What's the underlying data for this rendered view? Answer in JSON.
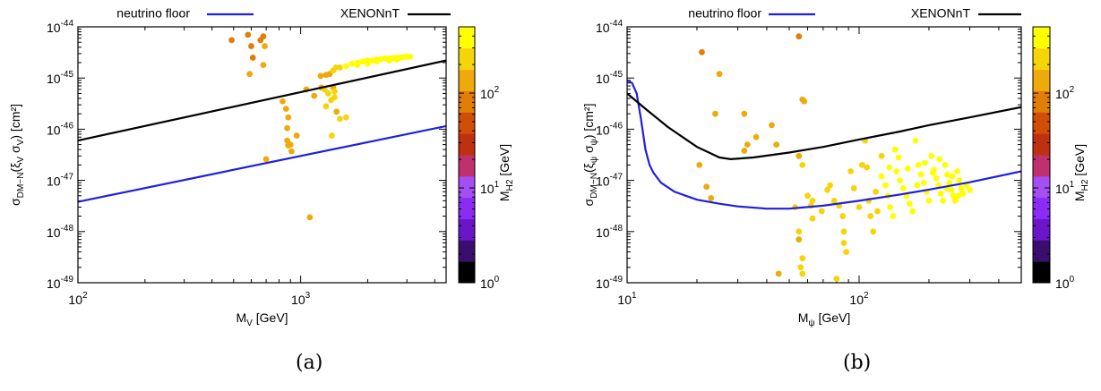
{
  "figure": {
    "caption_a": "(a)",
    "caption_b": "(b)"
  },
  "chart_data": [
    {
      "type": "scatter",
      "panel": "a",
      "xlabel": "M_V [GeV]",
      "ylabel": "σ_DM−N(ξ_V σ_V) [cm²]",
      "xscale": "log",
      "yscale": "log",
      "xlim": [
        100,
        4500
      ],
      "ylim": [
        1e-49,
        1e-44
      ],
      "xtick_labels": [
        "10^2",
        "10^3"
      ],
      "ytick_labels": [
        "10^-49",
        "10^-48",
        "10^-47",
        "10^-46",
        "10^-45",
        "10^-44"
      ],
      "legend": {
        "position": "top",
        "entries": [
          {
            "name": "neutrino floor",
            "color": "#1f1fe0"
          },
          {
            "name": "XENONnT",
            "color": "#000000"
          }
        ]
      },
      "lines": [
        {
          "name": "neutrino floor",
          "color": "#1f1fe0",
          "x": [
            100,
            4500
          ],
          "y": [
            3.8e-48,
            1.15e-46
          ]
        },
        {
          "name": "XENONnT",
          "color": "#000000",
          "x": [
            100,
            4500
          ],
          "y": [
            6e-47,
            2.2e-45
          ]
        }
      ],
      "colorbar": {
        "label": "M_H2 [GeV]",
        "scale": "log",
        "range": [
          1,
          500
        ],
        "tick_labels": [
          "10^0",
          "10^1",
          "10^2"
        ],
        "colors": [
          "#000000",
          "#3a0e6e",
          "#6a16c8",
          "#8a2cf4",
          "#a44ef6",
          "#c0306e",
          "#bf3010",
          "#d24e08",
          "#e27e06",
          "#eeaa0a",
          "#f6d40a",
          "#ffff00"
        ]
      },
      "points": [
        [
          490,
          5.5e-45,
          70
        ],
        [
          580,
          7e-45,
          80
        ],
        [
          600,
          4.2e-45,
          80
        ],
        [
          660,
          5.5e-45,
          90
        ],
        [
          680,
          6.5e-45,
          85
        ],
        [
          610,
          2.5e-45,
          100
        ],
        [
          690,
          4.2e-45,
          110
        ],
        [
          590,
          1.2e-45,
          160
        ],
        [
          680,
          1.8e-45,
          150
        ],
        [
          860,
          2.5e-46,
          110
        ],
        [
          880,
          1.7e-46,
          130
        ],
        [
          870,
          6e-47,
          120
        ],
        [
          880,
          4.8e-47,
          140
        ],
        [
          900,
          5e-47,
          150
        ],
        [
          910,
          3.7e-47,
          140
        ],
        [
          700,
          2.6e-47,
          150
        ],
        [
          960,
          7.5e-47,
          160
        ],
        [
          870,
          1.05e-46,
          150
        ],
        [
          830,
          3.5e-46,
          140
        ],
        [
          1100,
          1.9e-48,
          110
        ],
        [
          1060,
          6e-46,
          120
        ],
        [
          1150,
          4.5e-46,
          130
        ],
        [
          1230,
          1.1e-45,
          140
        ],
        [
          1300,
          1.15e-45,
          130
        ],
        [
          1350,
          1.2e-45,
          140
        ],
        [
          1240,
          6.5e-46,
          170
        ],
        [
          1280,
          6e-46,
          190
        ],
        [
          1330,
          5e-46,
          180
        ],
        [
          1400,
          6.5e-46,
          170
        ],
        [
          1380,
          7.5e-47,
          200
        ],
        [
          1420,
          5.5e-46,
          190
        ],
        [
          1450,
          2.2e-46,
          170
        ],
        [
          1500,
          1.6e-46,
          180
        ],
        [
          1600,
          1.7e-46,
          190
        ],
        [
          1400,
          1.4e-45,
          200
        ],
        [
          1370,
          3.7e-46,
          180
        ],
        [
          1420,
          4.2e-46,
          180
        ],
        [
          1300,
          2.8e-46,
          200
        ],
        [
          1440,
          1.6e-45,
          210
        ],
        [
          1500,
          1.6e-45,
          280
        ],
        [
          1600,
          1.7e-45,
          300
        ],
        [
          1700,
          1.9e-45,
          320
        ],
        [
          1800,
          2e-45,
          350
        ],
        [
          1900,
          2.1e-45,
          360
        ],
        [
          2000,
          2.2e-45,
          380
        ],
        [
          2100,
          2.2e-45,
          400
        ],
        [
          2200,
          2.3e-45,
          420
        ],
        [
          2300,
          2.35e-45,
          430
        ],
        [
          2400,
          2.4e-45,
          440
        ],
        [
          2500,
          2.4e-45,
          450
        ],
        [
          2600,
          2.45e-45,
          450
        ],
        [
          2700,
          2.5e-45,
          460
        ],
        [
          2800,
          2.5e-45,
          470
        ],
        [
          2900,
          2.55e-45,
          480
        ],
        [
          3000,
          2.6e-45,
          480
        ],
        [
          3100,
          2.6e-45,
          490
        ],
        [
          2000,
          1.9e-45,
          360
        ],
        [
          1800,
          1.8e-45,
          330
        ],
        [
          2200,
          2.1e-45,
          400
        ],
        [
          2500,
          2.2e-45,
          430
        ],
        [
          2700,
          2.3e-45,
          450
        ]
      ]
    },
    {
      "type": "scatter",
      "panel": "b",
      "xlabel": "M_ψ [GeV]",
      "ylabel": "σ_DM−N(ξ_ψ σ_ψ) [cm²]",
      "xscale": "log",
      "yscale": "log",
      "xlim": [
        10,
        500
      ],
      "ylim": [
        1e-49,
        1e-44
      ],
      "xtick_labels": [
        "10^1",
        "10^2"
      ],
      "ytick_labels": [
        "10^-49",
        "10^-48",
        "10^-47",
        "10^-46",
        "10^-45",
        "10^-44"
      ],
      "legend": {
        "position": "top",
        "entries": [
          {
            "name": "neutrino floor",
            "color": "#1f1fe0"
          },
          {
            "name": "XENONnT",
            "color": "#000000"
          }
        ]
      },
      "lines": [
        {
          "name": "neutrino floor",
          "color": "#1f1fe0",
          "x": [
            10,
            10.5,
            11,
            11.5,
            12,
            12.5,
            13,
            14,
            16,
            20,
            25,
            30,
            40,
            50,
            70,
            100,
            150,
            200,
            300,
            500
          ],
          "y": [
            9e-46,
            8e-46,
            5e-46,
            1.5e-46,
            4e-47,
            2e-47,
            1.4e-47,
            9e-48,
            6e-48,
            4.2e-48,
            3.5e-48,
            3.1e-48,
            2.8e-48,
            2.8e-48,
            3.2e-48,
            4e-48,
            5.3e-48,
            6.6e-48,
            9.2e-48,
            1.5e-47
          ]
        },
        {
          "name": "XENONnT",
          "color": "#000000",
          "x": [
            10,
            12,
            15,
            20,
            25,
            28,
            35,
            50,
            70,
            100,
            150,
            200,
            300,
            500
          ],
          "y": [
            5e-46,
            2.5e-46,
            1.1e-46,
            4.5e-47,
            2.8e-47,
            2.6e-47,
            2.8e-47,
            3.5e-47,
            4.5e-47,
            6.3e-47,
            9e-47,
            1.2e-46,
            1.7e-46,
            2.7e-46
          ]
        }
      ],
      "colorbar": {
        "label": "M_H2 [GeV]",
        "scale": "log",
        "range": [
          1,
          500
        ],
        "tick_labels": [
          "10^0",
          "10^1",
          "10^2"
        ],
        "colors": [
          "#000000",
          "#3a0e6e",
          "#6a16c8",
          "#8a2cf4",
          "#a44ef6",
          "#c0306e",
          "#bf3010",
          "#d24e08",
          "#e27e06",
          "#eeaa0a",
          "#f6d40a",
          "#ffff00"
        ]
      },
      "points": [
        [
          21,
          3.2e-45,
          100
        ],
        [
          25,
          1.2e-45,
          110
        ],
        [
          24,
          2e-46,
          110
        ],
        [
          32,
          2e-46,
          120
        ],
        [
          20.5,
          2e-47,
          110
        ],
        [
          22,
          7.5e-48,
          120
        ],
        [
          23,
          4.5e-48,
          130
        ],
        [
          32,
          3.8e-47,
          120
        ],
        [
          33,
          5e-47,
          120
        ],
        [
          36,
          7e-47,
          130
        ],
        [
          42,
          1.2e-46,
          140
        ],
        [
          44,
          5e-47,
          150
        ],
        [
          55,
          6.5e-45,
          100
        ],
        [
          57,
          3.8e-46,
          110
        ],
        [
          58,
          3.5e-46,
          110
        ],
        [
          55,
          3e-47,
          170
        ],
        [
          57,
          2e-47,
          180
        ],
        [
          60,
          5e-48,
          180
        ],
        [
          62,
          3.2e-48,
          190
        ],
        [
          63,
          1.8e-48,
          190
        ],
        [
          55,
          7e-49,
          170
        ],
        [
          57,
          3e-49,
          180
        ],
        [
          56,
          2e-49,
          180
        ],
        [
          57,
          1.5e-49,
          190
        ],
        [
          45,
          1.5e-49,
          170
        ],
        [
          53,
          3e-48,
          180
        ],
        [
          55,
          1e-48,
          190
        ],
        [
          63,
          4e-48,
          200
        ],
        [
          69,
          2.5e-48,
          200
        ],
        [
          73,
          6.5e-48,
          190
        ],
        [
          75,
          8e-48,
          200
        ],
        [
          78,
          4e-48,
          210
        ],
        [
          80,
          1.2e-49,
          190
        ],
        [
          82,
          3.2e-48,
          200
        ],
        [
          85,
          2e-48,
          210
        ],
        [
          86,
          1e-48,
          200
        ],
        [
          86,
          6e-49,
          200
        ],
        [
          88,
          4e-49,
          210
        ],
        [
          92,
          1.5e-47,
          220
        ],
        [
          95,
          7e-48,
          210
        ],
        [
          100,
          3e-48,
          220
        ],
        [
          103,
          2e-47,
          230
        ],
        [
          106,
          6e-47,
          220
        ],
        [
          108,
          1.8e-47,
          240
        ],
        [
          110,
          4e-48,
          240
        ],
        [
          112,
          2e-48,
          240
        ],
        [
          115,
          1e-48,
          250
        ],
        [
          118,
          6e-48,
          250
        ],
        [
          120,
          2.5e-48,
          250
        ],
        [
          125,
          3e-47,
          260
        ],
        [
          125,
          1.2e-47,
          330
        ],
        [
          130,
          8e-48,
          340
        ],
        [
          133,
          5e-48,
          350
        ],
        [
          136,
          3e-48,
          350
        ],
        [
          140,
          2e-48,
          350
        ],
        [
          143,
          4e-47,
          350
        ],
        [
          145,
          1.5e-47,
          360
        ],
        [
          150,
          1e-47,
          370
        ],
        [
          155,
          7e-48,
          380
        ],
        [
          160,
          5e-48,
          380
        ],
        [
          165,
          3.5e-48,
          380
        ],
        [
          170,
          2.5e-48,
          380
        ],
        [
          175,
          6e-47,
          380
        ],
        [
          180,
          2e-47,
          390
        ],
        [
          185,
          1.3e-47,
          400
        ],
        [
          190,
          9e-48,
          400
        ],
        [
          195,
          6e-48,
          410
        ],
        [
          200,
          4e-48,
          410
        ],
        [
          205,
          3e-47,
          420
        ],
        [
          210,
          1.6e-47,
          420
        ],
        [
          215,
          1.1e-47,
          430
        ],
        [
          220,
          8e-48,
          430
        ],
        [
          225,
          5.5e-48,
          440
        ],
        [
          230,
          4e-48,
          440
        ],
        [
          235,
          2e-47,
          440
        ],
        [
          240,
          1.3e-47,
          450
        ],
        [
          245,
          9e-48,
          450
        ],
        [
          250,
          6.5e-48,
          450
        ],
        [
          255,
          5e-48,
          460
        ],
        [
          260,
          4e-48,
          460
        ],
        [
          265,
          1.5e-47,
          460
        ],
        [
          270,
          1e-47,
          470
        ],
        [
          275,
          7e-48,
          470
        ],
        [
          280,
          5.5e-48,
          470
        ],
        [
          290,
          8e-48,
          480
        ],
        [
          300,
          6.5e-48,
          480
        ],
        [
          135,
          1.8e-47,
          360
        ],
        [
          148,
          2.8e-47,
          370
        ],
        [
          162,
          1.7e-47,
          380
        ],
        [
          178,
          8e-48,
          390
        ],
        [
          192,
          2.2e-47,
          400
        ],
        [
          208,
          1.4e-47,
          420
        ],
        [
          222,
          2.6e-47,
          430
        ],
        [
          238,
          7e-48,
          440
        ],
        [
          252,
          1.2e-47,
          450
        ],
        [
          268,
          5e-48,
          460
        ]
      ]
    }
  ]
}
